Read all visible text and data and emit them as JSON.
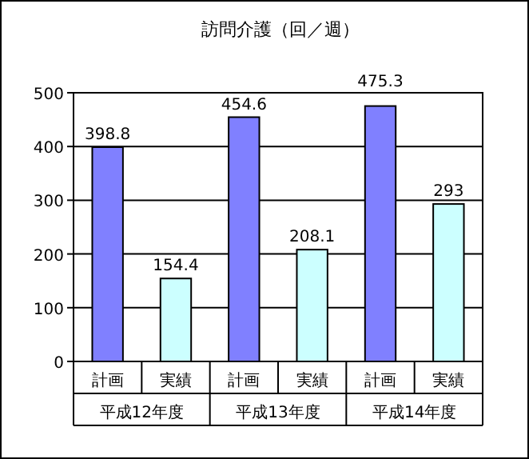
{
  "chart_data": {
    "type": "bar",
    "title": "訪問介護（回／週）",
    "categories": [
      "計画",
      "実績",
      "計画",
      "実績",
      "計画",
      "実績"
    ],
    "values": [
      398.8,
      154.4,
      454.6,
      208.1,
      475.3,
      293
    ],
    "colors": [
      "#8080ff",
      "#ccffff",
      "#8080ff",
      "#ccffff",
      "#8080ff",
      "#ccffff"
    ],
    "ylim": [
      0,
      500
    ],
    "yticks": [
      0,
      100,
      200,
      300,
      400,
      500
    ],
    "grid": "y",
    "data_labels": true,
    "annotations": [
      "平成12年度",
      "平成13年度",
      "平成14年度"
    ]
  }
}
